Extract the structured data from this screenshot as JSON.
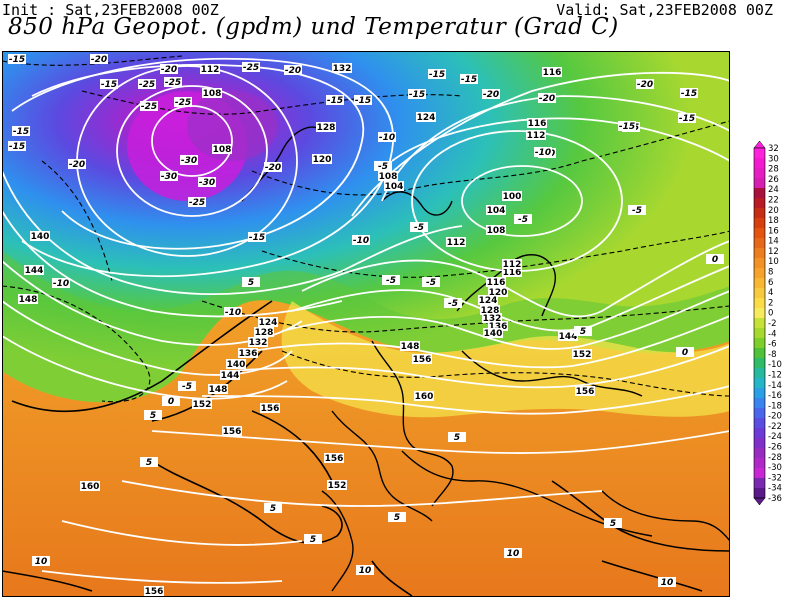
{
  "header": {
    "init": "Init : Sat,23FEB2008 00Z",
    "valid": "Valid: Sat,23FEB2008 00Z",
    "title": "850 hPa Geopot. (gpdm) und Temperatur (Grad C)"
  },
  "legend": {
    "ticks": [
      "32",
      "30",
      "28",
      "26",
      "24",
      "22",
      "20",
      "18",
      "16",
      "14",
      "12",
      "10",
      "8",
      "6",
      "4",
      "2",
      "0",
      "-2",
      "-4",
      "-6",
      "-8",
      "-10",
      "-12",
      "-14",
      "-16",
      "-18",
      "-20",
      "-22",
      "-24",
      "-26",
      "-28",
      "-30",
      "-32",
      "-34",
      "-36"
    ],
    "colors": [
      "#ff22dd",
      "#f21bd0",
      "#e51ec3",
      "#d61fb2",
      "#a8103d",
      "#b81b26",
      "#c52e14",
      "#d6400e",
      "#e25410",
      "#e6681a",
      "#ec7e20",
      "#f29126",
      "#f5a32c",
      "#f7b634",
      "#f7c93e",
      "#f9dc48",
      "#f5eb5c",
      "#c6e238",
      "#a6d92e",
      "#7fcf2c",
      "#4fc23a",
      "#2fbb68",
      "#27b9a0",
      "#25b5c8",
      "#2a9fe6",
      "#3a84f0",
      "#4b66ea",
      "#5a4de0",
      "#6c3ad4",
      "#8030c8",
      "#982cc0",
      "#b028c8",
      "#c828d4",
      "#7a2ab0",
      "#5a1a8a"
    ]
  },
  "map": {
    "geopotential_labels": [
      "112",
      "132",
      "116",
      "108",
      "108",
      "128",
      "120",
      "124",
      "116",
      "112",
      "104",
      "108",
      "100",
      "104",
      "112",
      "116",
      "108",
      "112",
      "116",
      "120",
      "124",
      "128",
      "132",
      "136",
      "140",
      "144",
      "148",
      "152",
      "156",
      "160",
      "156",
      "152",
      "156",
      "156",
      "160",
      "156",
      "140",
      "144",
      "148",
      "124",
      "128",
      "132",
      "136",
      "140",
      "144",
      "148",
      "152",
      "156"
    ],
    "temperature_labels": [
      "-15",
      "-20",
      "-15",
      "-20",
      "-25",
      "-25",
      "-25",
      "-30",
      "-20",
      "-20",
      "-15",
      "-15",
      "-20",
      "-15",
      "-15",
      "-10",
      "-15",
      "-5",
      "-10",
      "-15",
      "-20",
      "-15",
      "-20",
      "-15",
      "-25",
      "-30",
      "-25",
      "-30",
      "-25",
      "-15",
      "-5",
      "-10",
      "-15",
      "-10",
      "-5",
      "-5",
      "-20",
      "-15",
      "-15",
      "-10",
      "-10",
      "-5",
      "-5",
      "-5",
      "0",
      "0",
      "-5",
      "5",
      "5",
      "5",
      "5",
      "5",
      "10",
      "10",
      "10",
      "5",
      "10",
      "0",
      "5",
      "5",
      "5"
    ]
  }
}
